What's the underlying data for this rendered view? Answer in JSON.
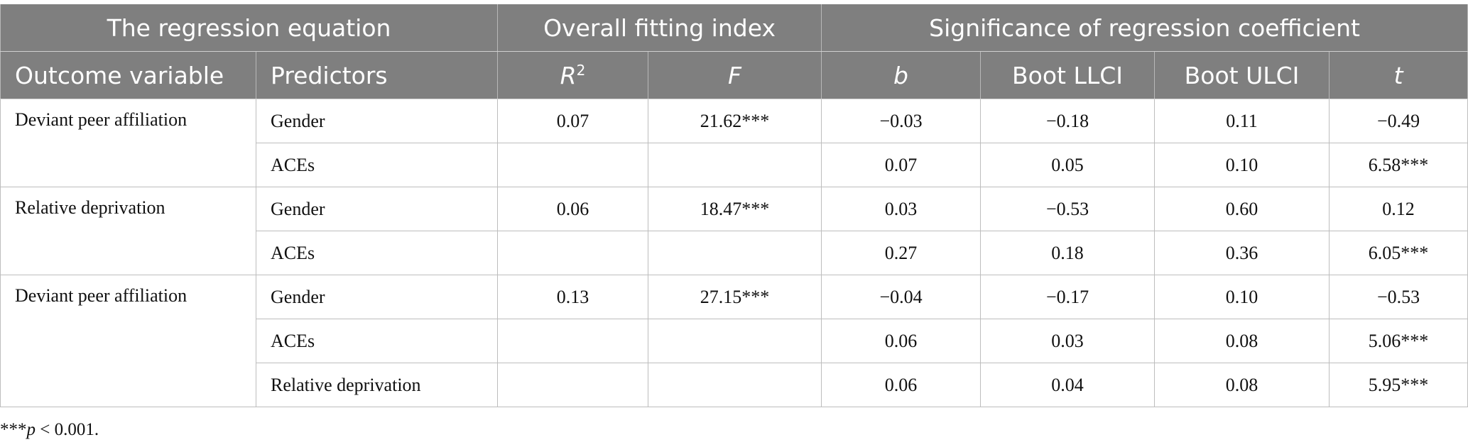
{
  "header_groups": [
    "The regression equation",
    "Overall fitting index",
    "Significance of regression coefficient"
  ],
  "columns": [
    "Outcome variable",
    "Predictors",
    {
      "text": "R",
      "sup": "2"
    },
    "F",
    "b",
    "Boot LLCI",
    "Boot ULCI",
    "t"
  ],
  "groups": [
    {
      "outcome": "Deviant peer affiliation",
      "r2": "0.07",
      "f": "21.62***",
      "rows": [
        {
          "predictor": "Gender",
          "b": "−0.03",
          "llci": "−0.18",
          "ulci": "0.11",
          "t": "−0.49"
        },
        {
          "predictor": "ACEs",
          "b": "0.07",
          "llci": "0.05",
          "ulci": "0.10",
          "t": "6.58***"
        }
      ]
    },
    {
      "outcome": "Relative deprivation",
      "r2": "0.06",
      "f": "18.47***",
      "rows": [
        {
          "predictor": "Gender",
          "b": "0.03",
          "llci": "−0.53",
          "ulci": "0.60",
          "t": "0.12"
        },
        {
          "predictor": "ACEs",
          "b": "0.27",
          "llci": "0.18",
          "ulci": "0.36",
          "t": "6.05***"
        }
      ]
    },
    {
      "outcome": "Deviant peer affiliation",
      "r2": "0.13",
      "f": "27.15***",
      "rows": [
        {
          "predictor": "Gender",
          "b": "−0.04",
          "llci": "−0.17",
          "ulci": "0.10",
          "t": "−0.53"
        },
        {
          "predictor": "ACEs",
          "b": "0.06",
          "llci": "0.03",
          "ulci": "0.08",
          "t": "5.06***"
        },
        {
          "predictor": "Relative deprivation",
          "b": "0.06",
          "llci": "0.04",
          "ulci": "0.08",
          "t": "5.95***"
        }
      ]
    }
  ],
  "footnote": {
    "stars": "***",
    "symbol": "p",
    "text": "< 0.001."
  }
}
